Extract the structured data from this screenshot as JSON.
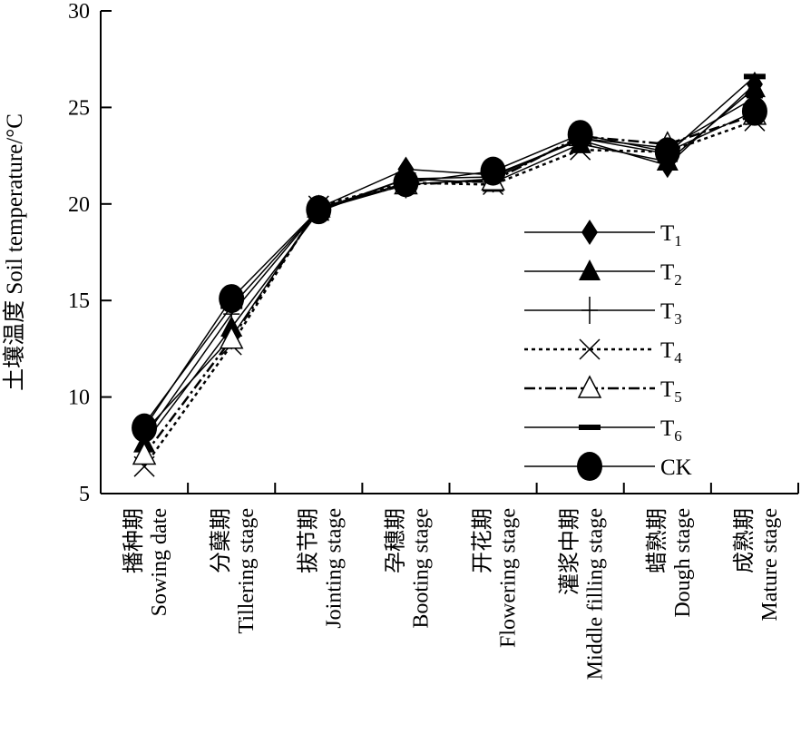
{
  "chart_data": {
    "type": "line",
    "title": "",
    "ylabel": "土壤温度 Soil temperature/°C",
    "xlabel": "",
    "ylim": [
      5,
      30
    ],
    "yticks": [
      5,
      10,
      15,
      20,
      25,
      30
    ],
    "grid": false,
    "legend_position": "right-middle",
    "categories": [
      {
        "zh": "播种期",
        "en": "Sowing date"
      },
      {
        "zh": "分蘖期",
        "en": "Tillering stage"
      },
      {
        "zh": "拔节期",
        "en": "Jointing stage"
      },
      {
        "zh": "孕穗期",
        "en": "Booting stage"
      },
      {
        "zh": "开花期",
        "en": "Flowering stage"
      },
      {
        "zh": "灌浆中期",
        "en": "Middle filling stage"
      },
      {
        "zh": "蜡熟期",
        "en": "Dough stage"
      },
      {
        "zh": "成熟期",
        "en": "Mature stage"
      }
    ],
    "series": [
      {
        "name": "T",
        "sub": "1",
        "marker": "diamond",
        "dash": "solid",
        "values": [
          8.2,
          13.1,
          19.8,
          21.8,
          21.5,
          23.3,
          22.0,
          26.2
        ]
      },
      {
        "name": "T",
        "sub": "2",
        "marker": "triangle",
        "dash": "solid",
        "values": [
          7.6,
          13.6,
          19.6,
          21.3,
          21.1,
          23.1,
          22.2,
          26.0
        ]
      },
      {
        "name": "T",
        "sub": "3",
        "marker": "plus",
        "dash": "solid",
        "values": [
          7.9,
          14.3,
          19.7,
          21.0,
          21.3,
          23.4,
          22.9,
          25.5
        ]
      },
      {
        "name": "T",
        "sub": "4",
        "marker": "cross",
        "dash": "dot",
        "values": [
          6.4,
          12.7,
          19.9,
          21.1,
          21.0,
          22.8,
          22.7,
          24.3
        ]
      },
      {
        "name": "T",
        "sub": "5",
        "marker": "triangle-open",
        "dash": "dashdot",
        "values": [
          7.0,
          13.0,
          19.8,
          21.0,
          21.2,
          23.5,
          23.1,
          24.6
        ]
      },
      {
        "name": "T",
        "sub": "6",
        "marker": "bar",
        "dash": "solid",
        "values": [
          8.6,
          14.7,
          19.7,
          21.3,
          21.4,
          23.4,
          22.6,
          26.6
        ]
      },
      {
        "name": "CK",
        "sub": "",
        "marker": "circle",
        "dash": "solid",
        "values": [
          8.4,
          15.1,
          19.7,
          21.1,
          21.7,
          23.6,
          22.7,
          24.8
        ]
      }
    ]
  }
}
